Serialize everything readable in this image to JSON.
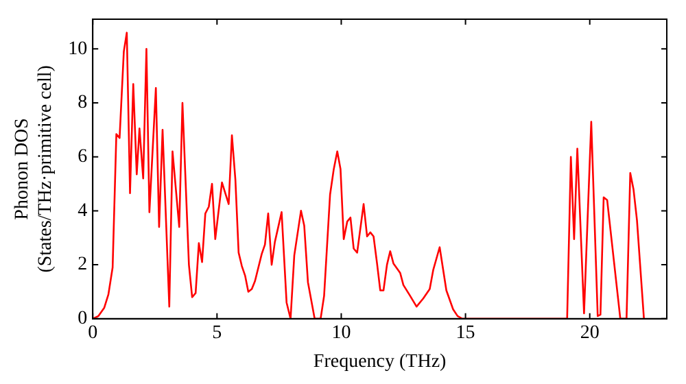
{
  "chart_data": {
    "type": "line",
    "xlabel": "Frequency (THz)",
    "ylabel": "Phonon DOS\n(States/THz·primitive cell)",
    "xlim": [
      0,
      23.1
    ],
    "ylim": [
      0,
      11.1
    ],
    "xticks": [
      0,
      5,
      10,
      15,
      20
    ],
    "yticks": [
      0,
      2,
      4,
      6,
      8,
      10
    ],
    "grid": false,
    "legend": false,
    "marker": "none",
    "line_style": "solid",
    "series": [
      {
        "color": "#ff0000",
        "x": [
          0,
          0.23,
          0.46,
          0.63,
          0.8,
          0.95,
          1.08,
          1.25,
          1.37,
          1.5,
          1.63,
          1.77,
          1.88,
          2.03,
          2.16,
          2.28,
          2.54,
          2.67,
          2.81,
          3.08,
          3.21,
          3.48,
          3.61,
          3.87,
          4.0,
          4.14,
          4.27,
          4.4,
          4.53,
          4.67,
          4.8,
          4.93,
          5.2,
          5.47,
          5.6,
          5.74,
          5.87,
          6.0,
          6.13,
          6.26,
          6.4,
          6.53,
          6.8,
          6.93,
          7.06,
          7.2,
          7.33,
          7.6,
          7.8,
          7.96,
          8.11,
          8.38,
          8.51,
          8.66,
          8.93,
          9.17,
          9.31,
          9.55,
          9.7,
          9.84,
          9.97,
          10.1,
          10.24,
          10.37,
          10.5,
          10.64,
          10.9,
          11.04,
          11.17,
          11.3,
          11.44,
          11.57,
          11.7,
          11.84,
          11.97,
          12.1,
          12.37,
          12.5,
          12.77,
          13.03,
          13.3,
          13.56,
          13.7,
          13.96,
          14.23,
          14.5,
          14.68,
          14.87,
          19.09,
          19.24,
          19.37,
          19.5,
          19.77,
          20.06,
          20.32,
          20.43,
          20.56,
          20.7,
          21.23,
          21.48,
          21.63,
          21.76,
          21.9,
          22.18
        ],
        "values": [
          0,
          0.1,
          0.4,
          0.9,
          1.9,
          6.84,
          6.7,
          9.9,
          10.6,
          4.65,
          8.7,
          5.35,
          7.05,
          5.2,
          10.0,
          3.95,
          8.55,
          3.4,
          7.0,
          0.45,
          6.2,
          3.4,
          8.0,
          2.0,
          0.8,
          0.95,
          2.8,
          2.1,
          3.9,
          4.15,
          5.0,
          2.95,
          5.05,
          4.25,
          6.8,
          5.15,
          2.45,
          1.95,
          1.6,
          1.0,
          1.1,
          1.4,
          2.4,
          2.75,
          3.9,
          2.0,
          2.85,
          3.95,
          0.6,
          0,
          2.35,
          4.0,
          3.45,
          1.35,
          0,
          0,
          0.85,
          4.6,
          5.55,
          6.2,
          5.55,
          2.95,
          3.6,
          3.75,
          2.6,
          2.45,
          4.25,
          3.05,
          3.2,
          3.05,
          2.05,
          1.05,
          1.05,
          2.0,
          2.5,
          2.05,
          1.7,
          1.25,
          0.85,
          0.45,
          0.75,
          1.1,
          1.8,
          2.65,
          1.05,
          0.35,
          0.1,
          0,
          0,
          6.0,
          2.95,
          6.3,
          0.2,
          7.3,
          0.1,
          0.15,
          4.5,
          4.4,
          0,
          0,
          5.4,
          4.8,
          3.65,
          0
        ]
      }
    ]
  }
}
